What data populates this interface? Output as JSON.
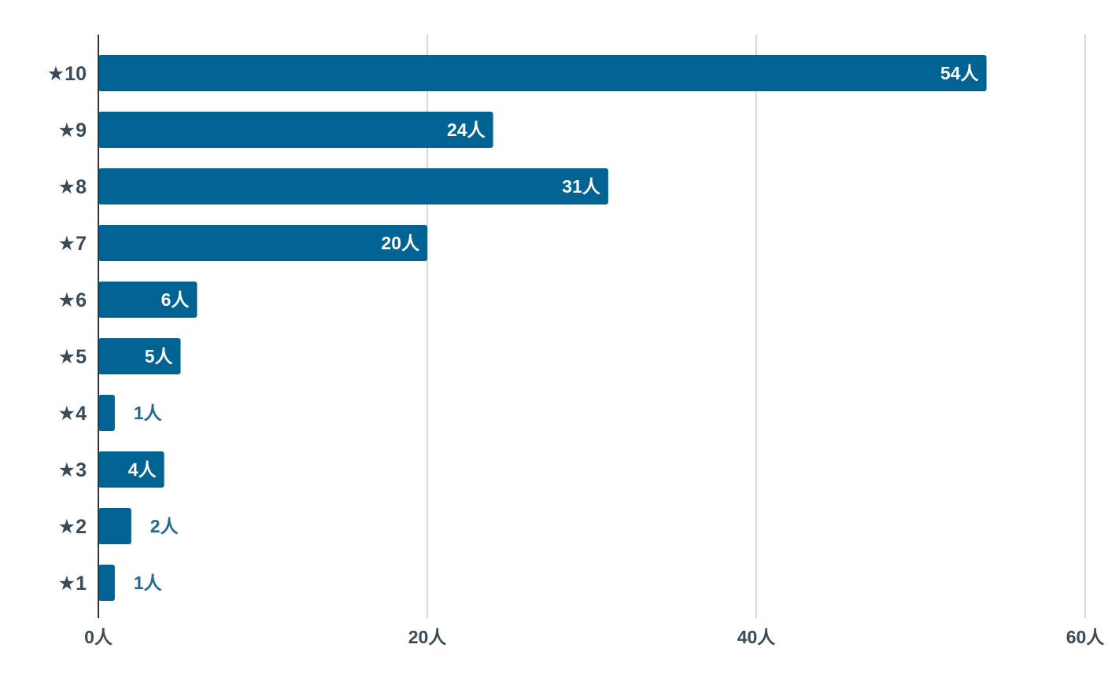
{
  "chart_data": {
    "type": "bar",
    "orientation": "horizontal",
    "categories": [
      "★10",
      "★9",
      "★8",
      "★7",
      "★6",
      "★5",
      "★4",
      "★3",
      "★2",
      "★1"
    ],
    "values": [
      54,
      24,
      31,
      20,
      6,
      5,
      1,
      4,
      2,
      1
    ],
    "data_labels": [
      "54人",
      "24人",
      "31人",
      "20人",
      "6人",
      "5人",
      "1人",
      "4人",
      "2人",
      "1人"
    ],
    "xlim": [
      0,
      60
    ],
    "x_ticks": [
      0,
      20,
      40,
      60
    ],
    "x_tick_labels": [
      "0人",
      "20人",
      "40人",
      "60人"
    ],
    "grid": true,
    "title": "",
    "xlabel": "",
    "ylabel": ""
  },
  "colors": {
    "bar": "#006391",
    "label_inside": "#ffffff",
    "label_outside": "#1f6a8f",
    "category_text": "#3a4a56",
    "tick_text": "#3a4a56",
    "grid": "#c8c8c8",
    "axis": "#333333"
  }
}
